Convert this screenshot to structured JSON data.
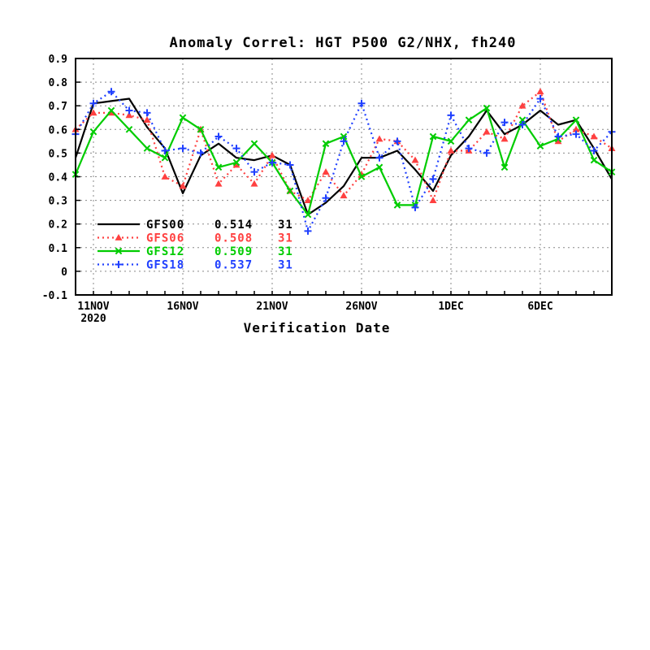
{
  "chart_data": {
    "type": "line",
    "title": "Anomaly Correl: HGT P500 G2/NHX, fh240",
    "xlabel": "Verification Date",
    "ylabel": "",
    "ylim": [
      -0.1,
      0.9
    ],
    "yticks": [
      "0.9",
      "0.8",
      "0.7",
      "0.6",
      "0.5",
      "0.4",
      "0.3",
      "0.2",
      "0.1",
      "0",
      "-0.1"
    ],
    "grid": true,
    "legend_placement": "lower-left",
    "x": [
      "10NOV",
      "11NOV",
      "12NOV",
      "13NOV",
      "14NOV",
      "15NOV",
      "16NOV",
      "17NOV",
      "18NOV",
      "19NOV",
      "20NOV",
      "21NOV",
      "22NOV",
      "23NOV",
      "24NOV",
      "25NOV",
      "26NOV",
      "27NOV",
      "28NOV",
      "29NOV",
      "30NOV",
      "1DEC",
      "2DEC",
      "3DEC",
      "4DEC",
      "5DEC",
      "6DEC",
      "7DEC",
      "8DEC",
      "9DEC",
      "10DEC"
    ],
    "x_tick_labels": [
      {
        "date": "11NOV",
        "text": "11NOV",
        "subtext": "2020"
      },
      {
        "date": "16NOV",
        "text": "16NOV"
      },
      {
        "date": "21NOV",
        "text": "21NOV"
      },
      {
        "date": "26NOV",
        "text": "26NOV"
      },
      {
        "date": "1DEC",
        "text": "1DEC"
      },
      {
        "date": "6DEC",
        "text": "6DEC"
      }
    ],
    "series": [
      {
        "name": "GFS00",
        "mean": "0.514",
        "count": "31",
        "color": "#000000",
        "line_style": "solid",
        "marker": "none",
        "values": [
          0.48,
          0.71,
          0.72,
          0.73,
          0.61,
          0.52,
          0.33,
          0.49,
          0.54,
          0.48,
          0.47,
          0.49,
          0.45,
          0.24,
          0.29,
          0.36,
          0.48,
          0.48,
          0.51,
          0.43,
          0.34,
          0.49,
          0.57,
          0.68,
          0.58,
          0.62,
          0.68,
          0.62,
          0.64,
          0.52,
          0.39
        ]
      },
      {
        "name": "GFS06",
        "mean": "0.508",
        "count": "31",
        "color": "#ff4040",
        "line_style": "dotted",
        "marker": "triangle",
        "values": [
          0.6,
          0.67,
          0.67,
          0.66,
          0.64,
          0.4,
          0.36,
          0.6,
          0.37,
          0.45,
          0.37,
          0.49,
          0.34,
          0.3,
          0.42,
          0.32,
          0.41,
          0.56,
          0.55,
          0.47,
          0.3,
          0.51,
          0.51,
          0.59,
          0.56,
          0.7,
          0.76,
          0.55,
          0.6,
          0.57,
          0.52
        ]
      },
      {
        "name": "GFS12",
        "mean": "0.509",
        "count": "31",
        "color": "#00cc00",
        "line_style": "solid",
        "marker": "x",
        "values": [
          0.41,
          0.59,
          0.68,
          0.6,
          0.52,
          0.48,
          0.65,
          0.6,
          0.44,
          0.46,
          0.54,
          0.46,
          0.34,
          0.24,
          0.54,
          0.57,
          0.4,
          0.44,
          0.28,
          0.28,
          0.57,
          0.55,
          0.64,
          0.69,
          0.44,
          0.64,
          0.53,
          0.56,
          0.64,
          0.47,
          0.42
        ]
      },
      {
        "name": "GFS18",
        "mean": "0.537",
        "count": "31",
        "color": "#2040ff",
        "line_style": "dotted",
        "marker": "plus",
        "values": [
          0.58,
          0.71,
          0.76,
          0.68,
          0.67,
          0.51,
          0.52,
          0.5,
          0.57,
          0.52,
          0.42,
          0.46,
          0.45,
          0.17,
          0.31,
          0.55,
          0.71,
          0.48,
          0.55,
          0.27,
          0.39,
          0.66,
          0.52,
          0.5,
          0.63,
          0.62,
          0.73,
          0.57,
          0.58,
          0.51,
          0.59
        ]
      }
    ]
  }
}
